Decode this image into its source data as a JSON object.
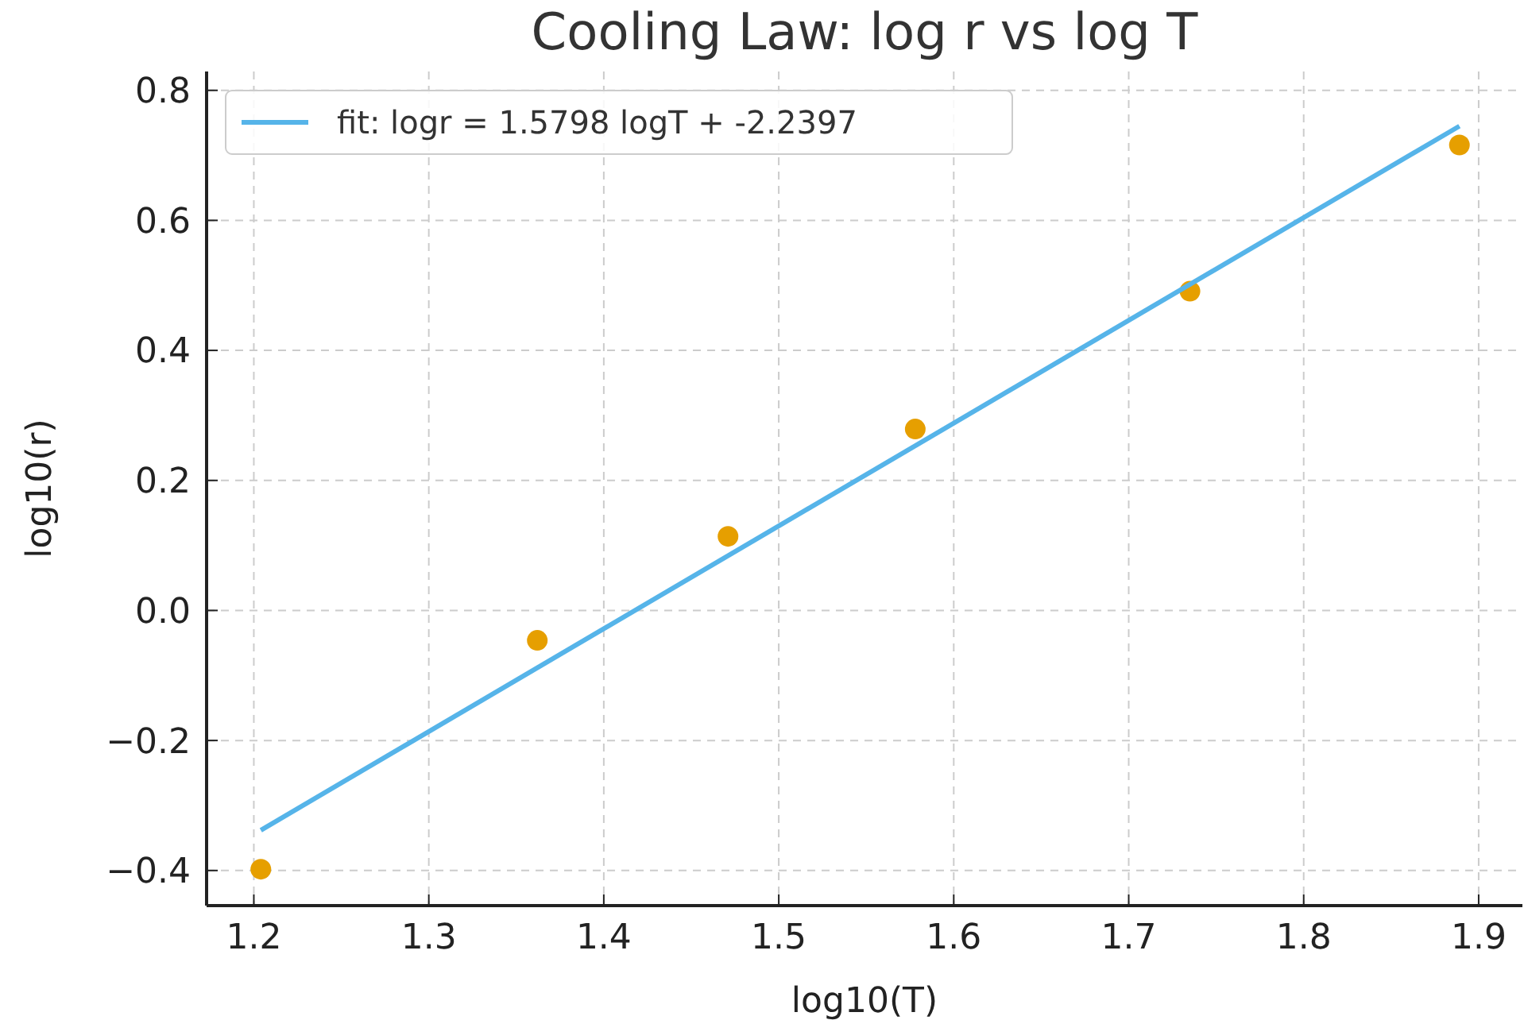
{
  "chart_data": {
    "type": "scatter",
    "title": "Cooling Law: log r vs log T",
    "xlabel": "log10(T)",
    "ylabel": "log10(r)",
    "xlim": [
      1.173,
      1.925
    ],
    "ylim": [
      -0.454,
      0.829
    ],
    "xticks": [
      1.2,
      1.3,
      1.4,
      1.5,
      1.6,
      1.7,
      1.8,
      1.9
    ],
    "yticks": [
      {
        "value": -0.4,
        "label": "−0.4"
      },
      {
        "value": -0.2,
        "label": "−0.2"
      },
      {
        "value": 0,
        "label": "0.0"
      },
      {
        "value": 0.2,
        "label": "0.2"
      },
      {
        "value": 0.4,
        "label": "0.4"
      },
      {
        "value": 0.6,
        "label": "0.6"
      },
      {
        "value": 0.8,
        "label": "0.8"
      }
    ],
    "grid": true,
    "legend": "top left",
    "series": [
      {
        "marker": "circle",
        "color": "#e69f00",
        "x": [
          1.204,
          1.362,
          1.471,
          1.578,
          1.735,
          1.889
        ],
        "values": [
          -0.398,
          -0.046,
          0.114,
          0.279,
          0.491,
          0.716
        ]
      },
      {
        "type": "line",
        "name": "fit: logr = 1.5798 logT + -2.2397",
        "color": "#56b4e9",
        "x": [
          1.204,
          1.889
        ],
        "values": [
          -0.338,
          0.745
        ],
        "line_style": "solid",
        "marker": "none"
      }
    ]
  }
}
